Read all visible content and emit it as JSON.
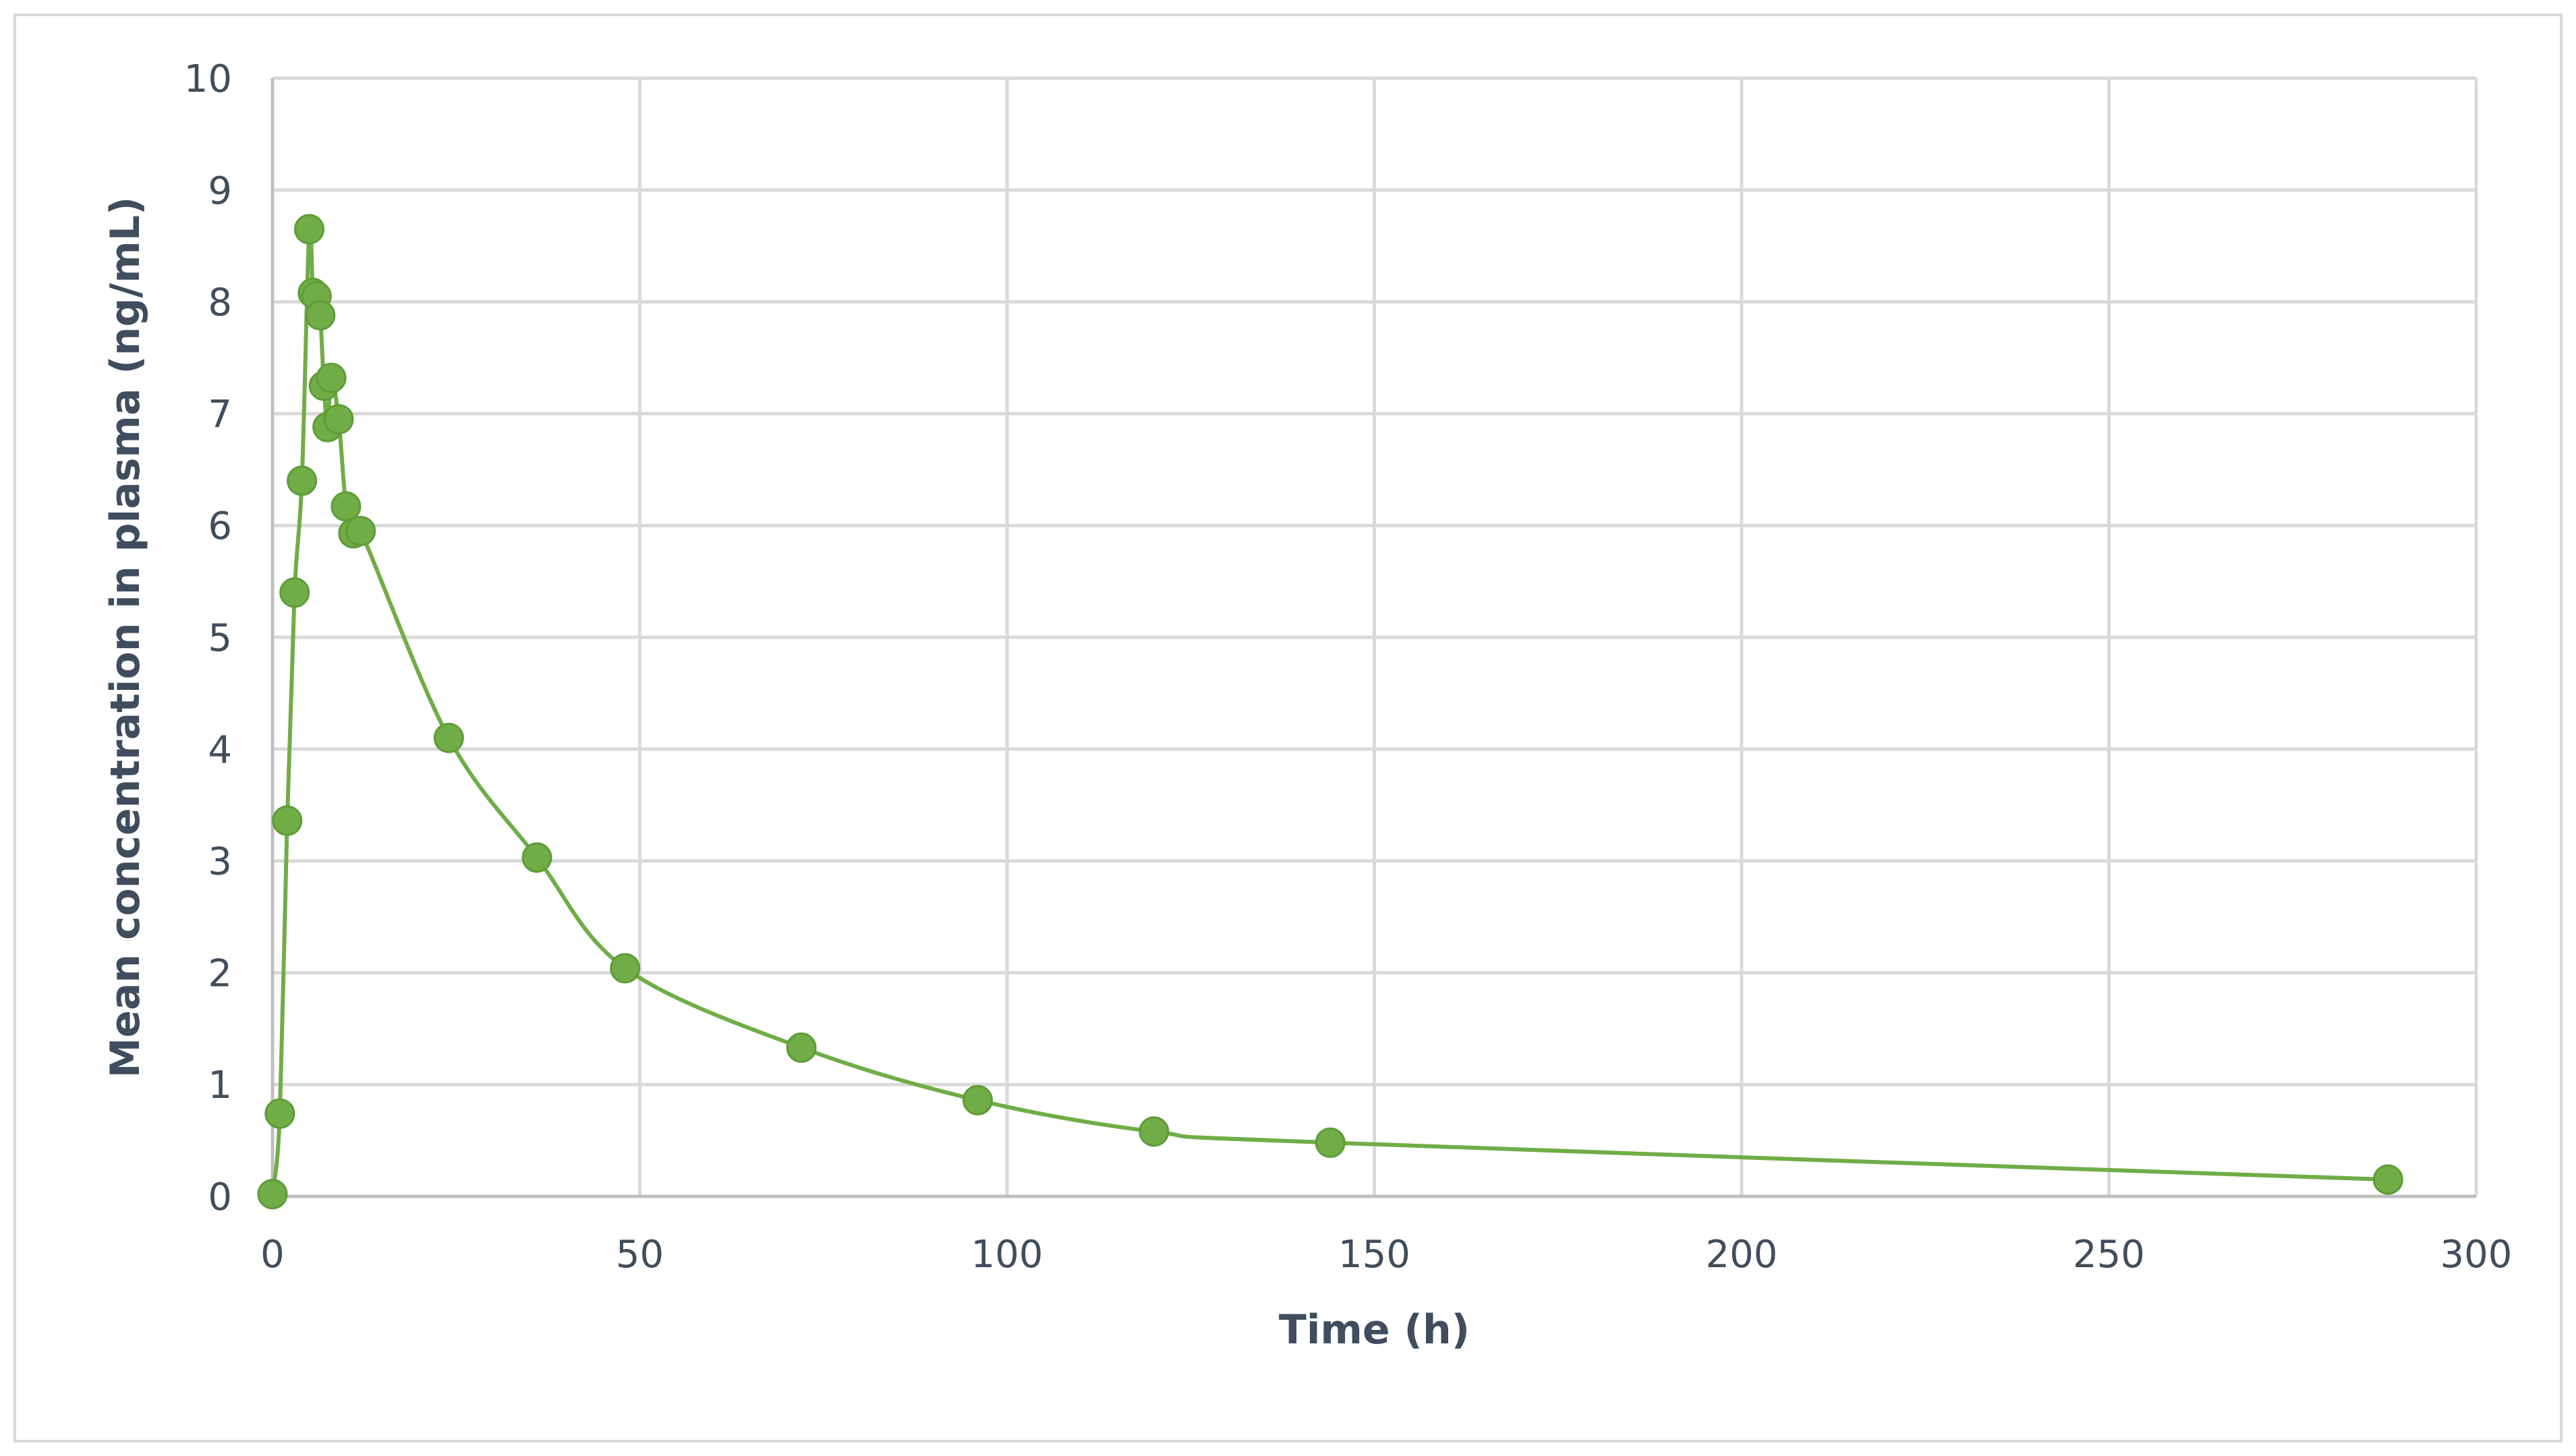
{
  "colors": {
    "series": "#70ad47",
    "grid": "#d9d9d9",
    "text": "#404d5c",
    "frame": "#d9d9d9"
  },
  "chart_data": {
    "type": "scatter",
    "subtype": "scatter-with-smooth-lines-and-markers",
    "title": "",
    "xlabel": "Time (h)",
    "ylabel": "Mean concentration in plasma (ng/mL)",
    "xlim": [
      0,
      300
    ],
    "ylim": [
      0,
      10
    ],
    "x_ticks": [
      0,
      50,
      100,
      150,
      200,
      250,
      300
    ],
    "y_ticks": [
      0,
      1,
      2,
      3,
      4,
      5,
      6,
      7,
      8,
      9,
      10
    ],
    "grid": true,
    "legend": "none",
    "series": [
      {
        "x": [
          0,
          1,
          2,
          3,
          4,
          5,
          5.5,
          6,
          6.5,
          7,
          7.5,
          8,
          9,
          10,
          11,
          12,
          24,
          36,
          48,
          72,
          96,
          120,
          144,
          288
        ],
        "y": [
          0.02,
          0.74,
          3.36,
          5.4,
          6.4,
          8.65,
          8.08,
          8.05,
          7.88,
          7.25,
          6.88,
          7.32,
          6.95,
          6.17,
          5.93,
          5.95,
          4.1,
          3.03,
          2.04,
          1.33,
          0.86,
          0.58,
          0.48,
          0.15
        ]
      }
    ]
  }
}
